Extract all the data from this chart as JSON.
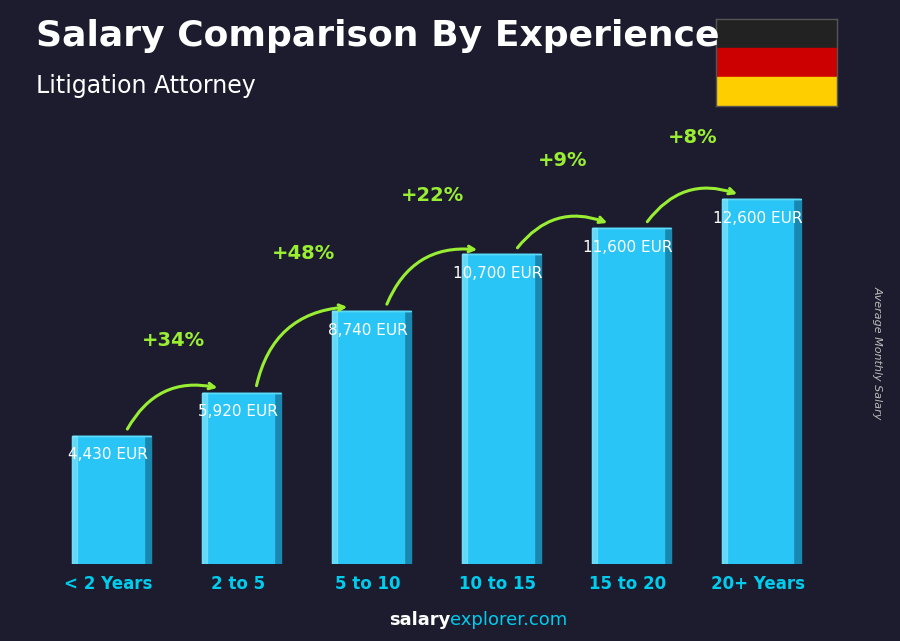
{
  "title": "Salary Comparison By Experience",
  "subtitle": "Litigation Attorney",
  "ylabel": "Average Monthly Salary",
  "categories": [
    "< 2 Years",
    "2 to 5",
    "5 to 10",
    "10 to 15",
    "15 to 20",
    "20+ Years"
  ],
  "values": [
    4430,
    5920,
    8740,
    10700,
    11600,
    12600
  ],
  "labels": [
    "4,430 EUR",
    "5,920 EUR",
    "8,740 EUR",
    "10,700 EUR",
    "11,600 EUR",
    "12,600 EUR"
  ],
  "pct_changes": [
    "+34%",
    "+48%",
    "+22%",
    "+9%",
    "+8%"
  ],
  "bar_front_color": "#29c5f6",
  "bar_side_color": "#1888b0",
  "bar_top_color": "#5dd9f8",
  "bar_highlight_color": "#90eafc",
  "background_color": "#1c1c2e",
  "title_color": "#ffffff",
  "subtitle_color": "#ffffff",
  "label_color": "#ffffff",
  "pct_color": "#99ee33",
  "arrow_color": "#99ee33",
  "tick_color": "#00ccee",
  "footer_salary_color": "#ffffff",
  "footer_explorer_color": "#00ccee",
  "ylim": [
    0,
    15500
  ],
  "title_fontsize": 26,
  "subtitle_fontsize": 17,
  "label_fontsize": 11,
  "pct_fontsize": 14,
  "tick_fontsize": 12,
  "footer_fontsize": 13,
  "ylabel_fontsize": 8
}
